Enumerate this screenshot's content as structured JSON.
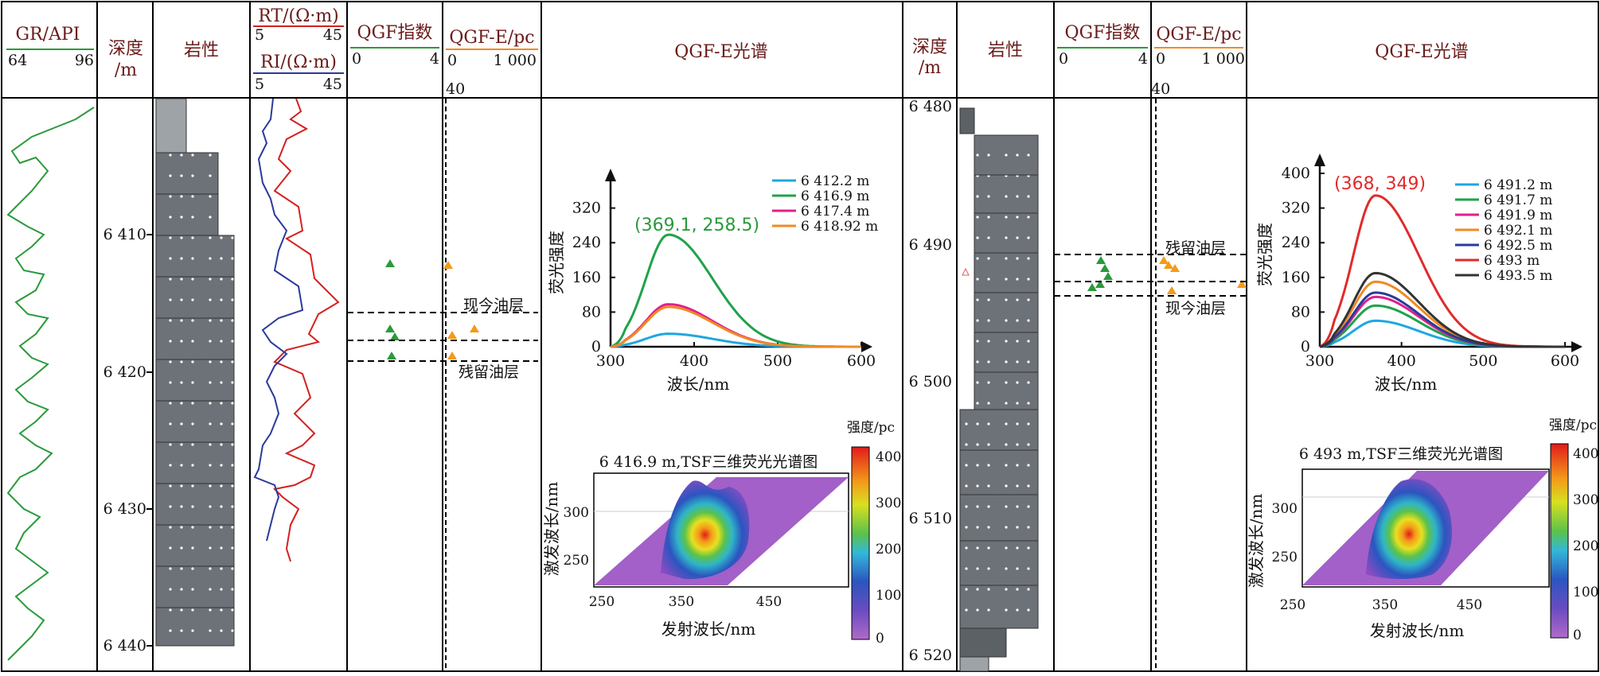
{
  "left_panel": {
    "headers": {
      "gr": "GR/API",
      "gr_min": "64",
      "gr_max": "96",
      "depth": "深度",
      "depth_unit": "/m",
      "lith": "岩性",
      "rt": "RT/(Ω·m)",
      "rt_min": "5",
      "rt_max": "45",
      "ri": "RI/(Ω·m)",
      "ri_min": "5",
      "ri_max": "45",
      "qgf": "QGF指数",
      "qgf_min": "0",
      "qgf_max": "4",
      "qgfe": "QGF-E/pc",
      "qgfe_min": "0",
      "qgfe_mid": "40",
      "qgfe_max": "1 000",
      "spectrum": "QGF-E光谱"
    },
    "depth_ticks": [
      "6 410",
      "6 420",
      "6 430",
      "6 440"
    ],
    "zone_labels": [
      "现今油层",
      "残留油层"
    ],
    "chart_data": {
      "type": "line",
      "title": "",
      "xlabel": "波长/nm",
      "ylabel": "荧光强度",
      "xlim": [
        300,
        600
      ],
      "ylim": [
        0,
        400
      ],
      "x_ticks": [
        "300",
        "400",
        "500",
        "600"
      ],
      "y_ticks": [
        "0",
        "80",
        "160",
        "240",
        "320"
      ],
      "peak_annotation": "(369.1, 258.5)",
      "series": [
        {
          "name": "6 412.2 m",
          "color": "#1ea7e1",
          "peak": [
            369,
            30
          ]
        },
        {
          "name": "6 416.9 m",
          "color": "#1fa24a",
          "peak": [
            369.1,
            258.5
          ]
        },
        {
          "name": "6 417.4 m",
          "color": "#e0208c",
          "peak": [
            369,
            98
          ]
        },
        {
          "name": "6 418.92 m",
          "color": "#f08a24",
          "peak": [
            369,
            92
          ]
        }
      ]
    },
    "tsf": {
      "title": "6 416.9 m,TSF三维荧光光谱图",
      "xlabel": "发射波长/nm",
      "ylabel": "激发波长/nm",
      "x_ticks": [
        "250",
        "350",
        "450"
      ],
      "y_ticks": [
        "250",
        "300"
      ],
      "colorbar_title": "强度/pc",
      "colorbar_ticks": [
        "400",
        "300",
        "200",
        "100",
        "0"
      ]
    }
  },
  "right_panel": {
    "headers": {
      "depth": "深度",
      "depth_unit": "/m",
      "lith": "岩性",
      "qgf": "QGF指数",
      "qgf_min": "0",
      "qgf_max": "4",
      "qgfe": "QGF-E/pc",
      "qgfe_min": "0",
      "qgfe_mid": "40",
      "qgfe_max": "1 000",
      "spectrum": "QGF-E光谱"
    },
    "depth_ticks": [
      "6 480",
      "6 490",
      "6 500",
      "6 510",
      "6 520"
    ],
    "zone_labels": [
      "残留油层",
      "现今油层"
    ],
    "chart_data": {
      "type": "line",
      "title": "",
      "xlabel": "波长/nm",
      "ylabel": "荧光强度",
      "xlim": [
        300,
        600
      ],
      "ylim": [
        0,
        400
      ],
      "x_ticks": [
        "300",
        "400",
        "500",
        "600"
      ],
      "y_ticks": [
        "0",
        "80",
        "160",
        "240",
        "320",
        "400"
      ],
      "peak_annotation": "(368, 349)",
      "series": [
        {
          "name": "6 491.2 m",
          "color": "#1ea7e1",
          "peak": [
            368,
            60
          ]
        },
        {
          "name": "6 491.7 m",
          "color": "#1fa24a",
          "peak": [
            368,
            95
          ]
        },
        {
          "name": "6 491.9 m",
          "color": "#e0208c",
          "peak": [
            368,
            115
          ]
        },
        {
          "name": "6 492.1 m",
          "color": "#f08a24",
          "peak": [
            368,
            150
          ]
        },
        {
          "name": "6 492.5 m",
          "color": "#2b3a9a",
          "peak": [
            368,
            125
          ]
        },
        {
          "name": "6 493 m",
          "color": "#e02b2b",
          "peak": [
            368,
            349
          ]
        },
        {
          "name": "6 493.5 m",
          "color": "#333333",
          "peak": [
            368,
            170
          ]
        }
      ]
    },
    "tsf": {
      "title": "6 493 m,TSF三维荧光光谱图",
      "xlabel": "发射波长/nm",
      "ylabel": "激发波长/nm",
      "x_ticks": [
        "250",
        "350",
        "450"
      ],
      "y_ticks": [
        "250",
        "300"
      ],
      "colorbar_title": "强度/pc",
      "colorbar_ticks": [
        "400",
        "300",
        "200",
        "100",
        "0"
      ]
    }
  }
}
